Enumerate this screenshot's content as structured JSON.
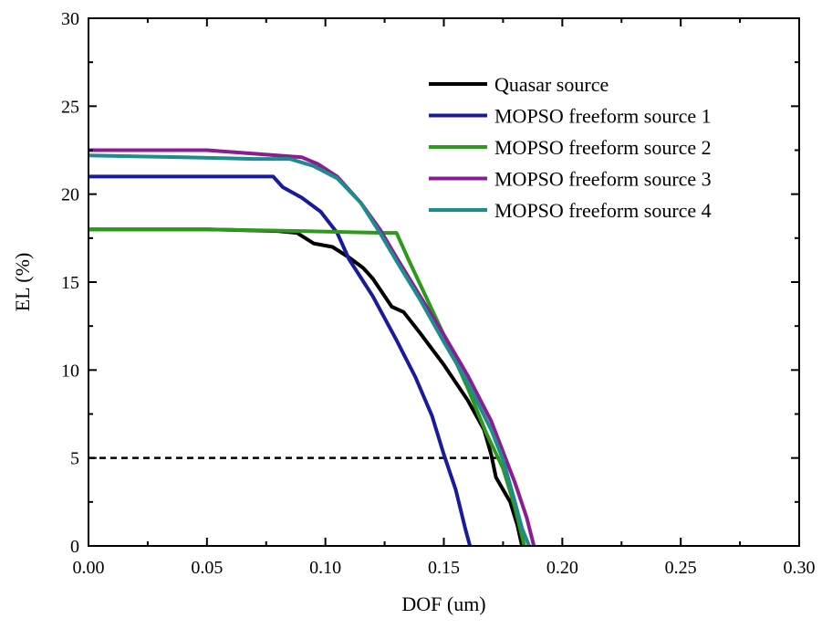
{
  "chart_data": {
    "type": "line",
    "title": "",
    "xlabel": "DOF (um)",
    "ylabel": "EL (%)",
    "xlim": [
      0,
      0.3
    ],
    "ylim": [
      0,
      30
    ],
    "x_ticks": [
      "0.00",
      "0.05",
      "0.10",
      "0.15",
      "0.20",
      "0.25",
      "0.30"
    ],
    "y_ticks": [
      "0",
      "5",
      "10",
      "15",
      "20",
      "25",
      "30"
    ],
    "grid": false,
    "legend_position": "top-right",
    "series": [
      {
        "name": "Quasar source",
        "color": "#000000",
        "points": [
          [
            0.0,
            18.0
          ],
          [
            0.05,
            18.0
          ],
          [
            0.08,
            17.9
          ],
          [
            0.088,
            17.8
          ],
          [
            0.095,
            17.2
          ],
          [
            0.103,
            17.0
          ],
          [
            0.11,
            16.4
          ],
          [
            0.116,
            15.8
          ],
          [
            0.12,
            15.2
          ],
          [
            0.125,
            14.2
          ],
          [
            0.128,
            13.6
          ],
          [
            0.133,
            13.3
          ],
          [
            0.14,
            12.1
          ],
          [
            0.15,
            10.3
          ],
          [
            0.16,
            8.3
          ],
          [
            0.167,
            6.6
          ],
          [
            0.17,
            5.2
          ],
          [
            0.172,
            3.9
          ],
          [
            0.178,
            2.5
          ],
          [
            0.181,
            1.2
          ],
          [
            0.183,
            0.0
          ]
        ]
      },
      {
        "name": "MOPSO freeform source 1",
        "color": "#1a1a9c",
        "points": [
          [
            0.0,
            21.0
          ],
          [
            0.07,
            21.0
          ],
          [
            0.078,
            21.0
          ],
          [
            0.082,
            20.4
          ],
          [
            0.09,
            19.8
          ],
          [
            0.098,
            19.0
          ],
          [
            0.105,
            17.8
          ],
          [
            0.11,
            16.3
          ],
          [
            0.12,
            14.2
          ],
          [
            0.13,
            11.7
          ],
          [
            0.138,
            9.6
          ],
          [
            0.145,
            7.4
          ],
          [
            0.15,
            5.2
          ],
          [
            0.155,
            3.2
          ],
          [
            0.159,
            1.0
          ],
          [
            0.161,
            0.0
          ]
        ]
      },
      {
        "name": "MOPSO freeform source 2",
        "color": "#2e9a1c",
        "points": [
          [
            0.0,
            18.0
          ],
          [
            0.05,
            18.0
          ],
          [
            0.09,
            17.9
          ],
          [
            0.125,
            17.8
          ],
          [
            0.13,
            17.8
          ],
          [
            0.135,
            16.3
          ],
          [
            0.142,
            14.3
          ],
          [
            0.15,
            12.0
          ],
          [
            0.16,
            9.0
          ],
          [
            0.168,
            6.4
          ],
          [
            0.175,
            4.4
          ],
          [
            0.18,
            2.2
          ],
          [
            0.184,
            0.0
          ]
        ]
      },
      {
        "name": "MOPSO freeform source 3",
        "color": "#8c1c94",
        "points": [
          [
            0.0,
            22.5
          ],
          [
            0.05,
            22.5
          ],
          [
            0.07,
            22.3
          ],
          [
            0.09,
            22.1
          ],
          [
            0.097,
            21.7
          ],
          [
            0.105,
            21.0
          ],
          [
            0.115,
            19.5
          ],
          [
            0.123,
            18.0
          ],
          [
            0.13,
            16.4
          ],
          [
            0.14,
            14.2
          ],
          [
            0.15,
            12.0
          ],
          [
            0.16,
            9.7
          ],
          [
            0.17,
            7.1
          ],
          [
            0.176,
            5.0
          ],
          [
            0.18,
            3.6
          ],
          [
            0.185,
            1.6
          ],
          [
            0.188,
            0.0
          ]
        ]
      },
      {
        "name": "MOPSO freeform source 4",
        "color": "#1e8c8c",
        "points": [
          [
            0.0,
            22.2
          ],
          [
            0.04,
            22.1
          ],
          [
            0.07,
            22.0
          ],
          [
            0.085,
            22.0
          ],
          [
            0.095,
            21.6
          ],
          [
            0.105,
            20.9
          ],
          [
            0.115,
            19.5
          ],
          [
            0.123,
            17.8
          ],
          [
            0.13,
            16.2
          ],
          [
            0.14,
            14.0
          ],
          [
            0.15,
            11.6
          ],
          [
            0.16,
            9.3
          ],
          [
            0.17,
            6.6
          ],
          [
            0.175,
            4.9
          ],
          [
            0.179,
            3.0
          ],
          [
            0.183,
            1.0
          ],
          [
            0.186,
            0.0
          ]
        ]
      }
    ],
    "reference_line": {
      "style": "dashed",
      "color": "#000000",
      "points": [
        [
          0.0,
          5.0
        ],
        [
          0.175,
          5.0
        ]
      ]
    }
  }
}
